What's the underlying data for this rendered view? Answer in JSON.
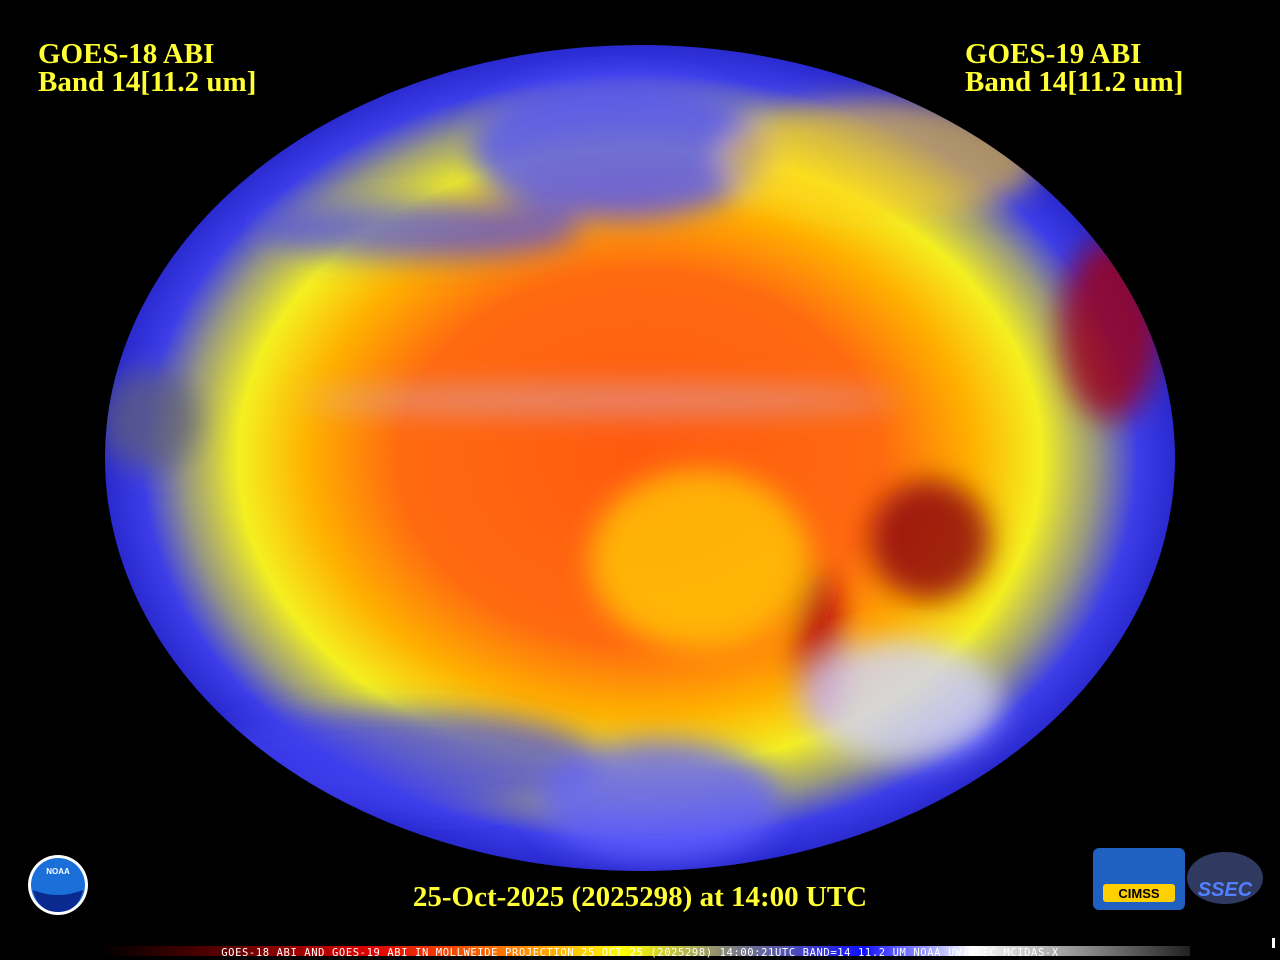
{
  "header": {
    "left_title": [
      "GOES-18 ABI",
      "Band 14[11.2 um]"
    ],
    "right_title": [
      "GOES-19 ABI",
      "Band 14[11.2 um]"
    ]
  },
  "timestamp": "25-Oct-2025 (2025298) at 14:00 UTC",
  "colorbar_caption": "GOES-18 ABI AND GOES-19 ABI IN MOLLWEIDE PROJECTION 25 OCT 25 (2025298) 14:00:21UTC BAND=14 11.2 UM NOAA UW-SSEC MCIDAS-X",
  "logos": {
    "noaa": "NOAA",
    "cimss": "CIMSS",
    "ssec": "SSEC"
  }
}
